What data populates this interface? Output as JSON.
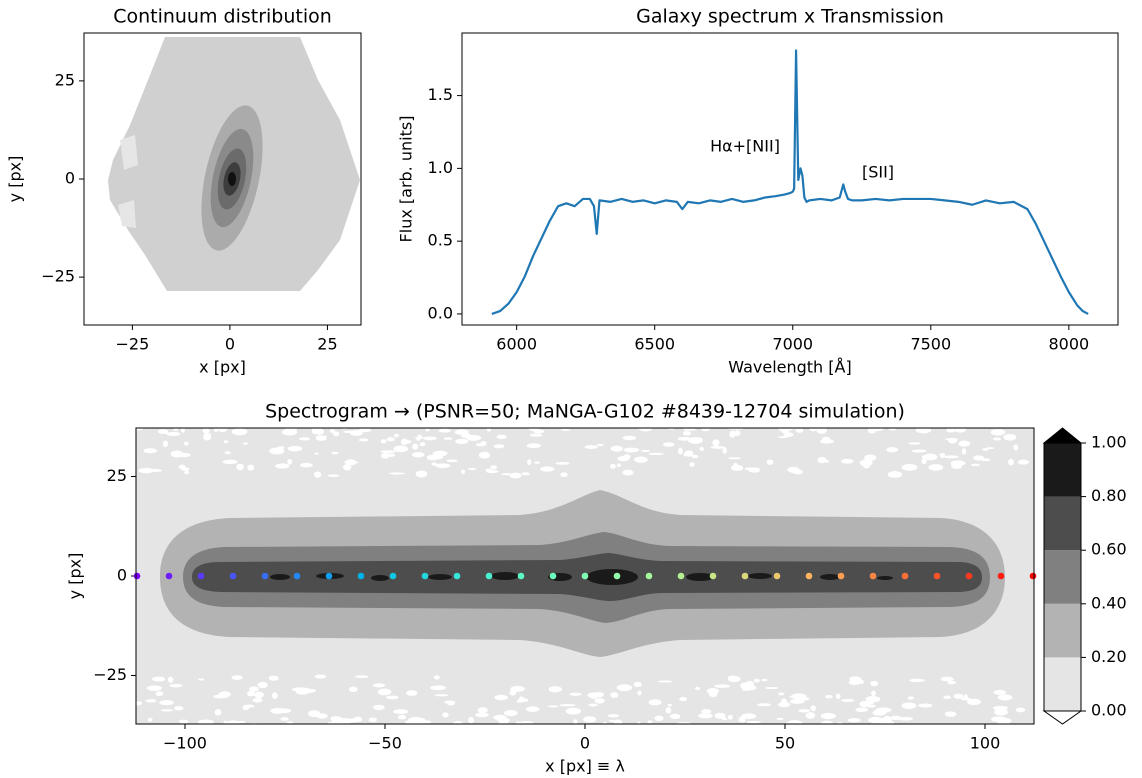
{
  "chart_data": [
    {
      "type": "contour",
      "title": "Continuum distribution",
      "xlabel": "x [px]",
      "ylabel": "y [px]",
      "xlim": [
        -37.4,
        33.6
      ],
      "ylim": [
        -37.2,
        37.2
      ],
      "xticks": [
        {
          "value": -25,
          "label": "−25"
        },
        0,
        25
      ],
      "yticks": [
        {
          "value": -25,
          "label": "−25"
        },
        0,
        25
      ]
    },
    {
      "type": "line",
      "title": "Galaxy spectrum x Transmission",
      "xlabel": "Wavelength [Å]",
      "ylabel": "Flux [arb. units]",
      "x": [
        5910,
        5940,
        5970,
        6000,
        6030,
        6060,
        6090,
        6120,
        6150,
        6180,
        6210,
        6240,
        6265,
        6280,
        6290,
        6300,
        6340,
        6380,
        6420,
        6460,
        6500,
        6540,
        6580,
        6600,
        6620,
        6660,
        6700,
        6740,
        6780,
        6820,
        6860,
        6900,
        6940,
        6970,
        6990,
        7000,
        7005,
        7012,
        7020,
        7028,
        7035,
        7042,
        7050,
        7060,
        7100,
        7140,
        7170,
        7183,
        7190,
        7200,
        7215,
        7250,
        7300,
        7350,
        7400,
        7450,
        7500,
        7550,
        7600,
        7650,
        7700,
        7750,
        7800,
        7850,
        7880,
        7910,
        7940,
        7970,
        8000,
        8030,
        8050,
        8070
      ],
      "series": [
        {
          "color": "#1f77b4",
          "values": [
            0.0,
            0.02,
            0.07,
            0.15,
            0.26,
            0.4,
            0.52,
            0.64,
            0.74,
            0.76,
            0.74,
            0.79,
            0.79,
            0.74,
            0.55,
            0.78,
            0.77,
            0.79,
            0.77,
            0.78,
            0.76,
            0.78,
            0.77,
            0.72,
            0.77,
            0.76,
            0.78,
            0.77,
            0.79,
            0.77,
            0.78,
            0.8,
            0.81,
            0.82,
            0.83,
            0.84,
            0.86,
            1.81,
            0.92,
            1.0,
            0.95,
            0.8,
            0.77,
            0.78,
            0.79,
            0.78,
            0.8,
            0.89,
            0.84,
            0.79,
            0.78,
            0.78,
            0.79,
            0.78,
            0.79,
            0.79,
            0.79,
            0.78,
            0.77,
            0.75,
            0.78,
            0.76,
            0.77,
            0.72,
            0.62,
            0.5,
            0.38,
            0.26,
            0.15,
            0.06,
            0.02,
            0.0
          ]
        }
      ],
      "annotations": [
        "Hα+[NII]",
        "[SII]"
      ],
      "xlim": [
        5802,
        8178
      ],
      "ylim": [
        -0.076,
        1.93
      ],
      "xticks": [
        6000,
        6500,
        7000,
        7500,
        8000
      ],
      "yticks": [
        {
          "value": 0,
          "label": "0.0"
        },
        0.5,
        {
          "value": 1,
          "label": "1.0"
        },
        1.5
      ]
    },
    {
      "type": "scatter",
      "title": "Spectrogram → (PSNR=50; MaNGA-G102 #8439-12704 simulation)",
      "xlabel": "x [px] ≡ λ",
      "ylabel": "y [px]",
      "x": [
        -112,
        -104,
        -96,
        -88,
        -80,
        -72,
        -64,
        -56,
        -48,
        -40,
        -32,
        -24,
        -16,
        -8,
        0,
        8,
        16,
        24,
        32,
        40,
        48,
        56,
        64,
        72,
        80,
        88,
        96,
        104,
        112
      ],
      "series": [
        {
          "values": [
            0,
            0,
            0,
            0,
            0,
            0,
            0,
            0,
            0,
            0,
            0,
            0,
            0,
            0,
            0,
            0,
            0,
            0,
            0,
            0,
            0,
            0,
            0,
            0,
            0,
            0,
            0,
            0,
            0
          ],
          "colors": [
            "#8000ff",
            "#6d1cfe",
            "#5b39fd",
            "#4954fb",
            "#376ff8",
            "#2488f5",
            "#129ff1",
            "#00b4eb",
            "#12c7e6",
            "#24d8df",
            "#37e6d8",
            "#49f1d0",
            "#5bf9c7",
            "#6dfdbe",
            "#80ffb4",
            "#92fdaa",
            "#a4f99f",
            "#b6f193",
            "#c8e688",
            "#dbd87b",
            "#edc76f",
            "#ffb462",
            "#ff9f54",
            "#ff8847",
            "#ff6f39",
            "#ff542b",
            "#ff391d",
            "#ff1c0e",
            "#ff0000"
          ]
        }
      ],
      "xlim": [
        -112.25,
        112.25
      ],
      "ylim": [
        -37.2,
        37.2
      ],
      "xticks": [
        {
          "value": -100,
          "label": "−100"
        },
        {
          "value": -50,
          "label": "−50"
        },
        0,
        50,
        100
      ],
      "yticks": [
        {
          "value": -25,
          "label": "−25"
        },
        0,
        25
      ],
      "colorbar": {
        "ticks": [
          {
            "value": 0,
            "label": "0.00"
          },
          {
            "value": 0.2,
            "label": "0.20"
          },
          {
            "value": 0.4,
            "label": "0.40"
          },
          {
            "value": 0.6,
            "label": "0.60"
          },
          {
            "value": 0.8,
            "label": "0.80"
          },
          {
            "value": 1,
            "label": "1.00"
          }
        ],
        "colors": [
          "#e5e5e5",
          "#b3b3b3",
          "#808080",
          "#4d4d4d",
          "#1a1a1a"
        ],
        "over_color": "#000000",
        "under_color": "#ffffff"
      }
    }
  ]
}
